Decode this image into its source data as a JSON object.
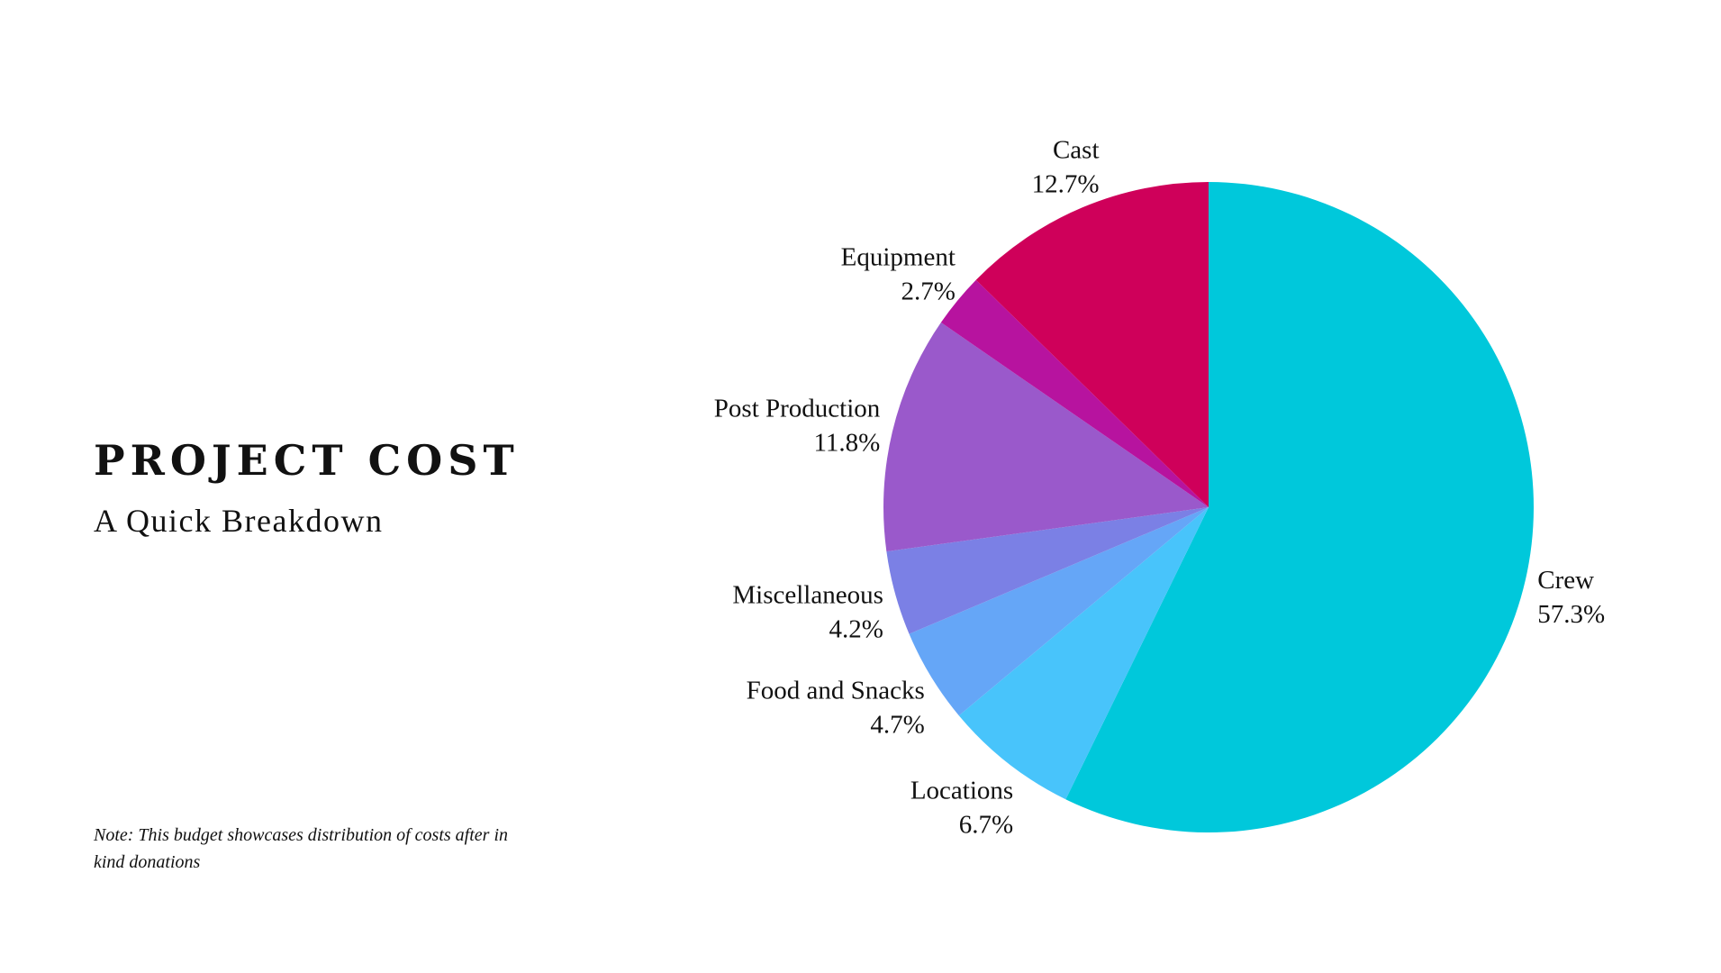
{
  "header": {
    "title": "PROJECT COST",
    "subtitle": "A Quick Breakdown"
  },
  "note": "Note: This budget showcases distribution of costs after in kind donations",
  "chart_data": {
    "type": "pie",
    "start_angle_deg": 0,
    "direction": "clockwise",
    "slices": [
      {
        "label": "Crew",
        "value": 57.3,
        "display": "57.3%",
        "color": "#00C8DB"
      },
      {
        "label": "Locations",
        "value": 6.7,
        "display": "6.7%",
        "color": "#48C4FB"
      },
      {
        "label": "Food and Snacks",
        "value": 4.7,
        "display": "4.7%",
        "color": "#65A6F7"
      },
      {
        "label": "Miscellaneous",
        "value": 4.2,
        "display": "4.2%",
        "color": "#7B80E5"
      },
      {
        "label": "Post Production",
        "value": 11.8,
        "display": "11.8%",
        "color": "#9A59CB"
      },
      {
        "label": "Equipment",
        "value": 2.7,
        "display": "2.7%",
        "color": "#B7139F"
      },
      {
        "label": "Cast",
        "value": 12.7,
        "display": "12.7%",
        "color": "#CF005A"
      }
    ]
  }
}
